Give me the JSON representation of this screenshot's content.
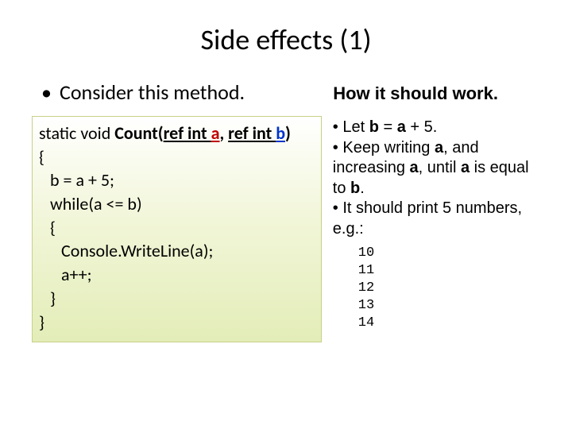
{
  "title": "Side effects (1)",
  "bullet": "Consider this method.",
  "subtitle": "How it should work.",
  "code": {
    "line1_prefix": "static void ",
    "line1_method": "Count(",
    "line1_ref1": "ref int ",
    "line1_a": "a",
    "line1_sep": ", ",
    "line1_ref2": "ref int ",
    "line1_b": "b",
    "line1_close": ")",
    "line2": "{",
    "line3": "b = a + 5;",
    "line4": "while(a <= b)",
    "line5": "{",
    "line6": "Console.WriteLine(a);",
    "line7": "a++;",
    "line8": "}",
    "line9": "}"
  },
  "explain": {
    "p1_prefix": "• Let ",
    "p1_b": "b",
    "p1_mid": " = ",
    "p1_a": "a",
    "p1_suffix": " + 5.",
    "p2_prefix": "• Keep writing ",
    "p2_a1": "a",
    "p2_mid1": ", and increasing ",
    "p2_a2": "a",
    "p2_mid2": ", until ",
    "p2_a3": "a",
    "p2_mid3": " is equal to ",
    "p2_b": "b",
    "p2_suffix": ".",
    "p3": "• It should print 5 numbers, e.g.:",
    "out1": "10",
    "out2": "11",
    "out3": "12",
    "out4": "13",
    "out5": "14"
  }
}
